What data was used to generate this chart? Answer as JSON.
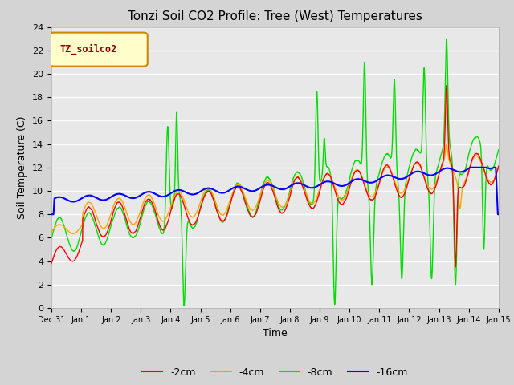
{
  "title": "Tonzi Soil CO2 Profile: Tree (West) Temperatures",
  "xlabel": "Time",
  "ylabel": "Soil Temperature (C)",
  "legend_label": "TZ_soilco2",
  "series_labels": [
    "-2cm",
    "-4cm",
    "-8cm",
    "-16cm"
  ],
  "series_colors": [
    "#ff0000",
    "#ffa500",
    "#00dd00",
    "#0000ff"
  ],
  "ylim": [
    0,
    24
  ],
  "fig_bg": "#d4d4d4",
  "plot_bg": "#e8e8e8",
  "xtick_labels": [
    "Dec 31",
    "Jan 1",
    "Jan 2",
    "Jan 3",
    "Jan 4",
    "Jan 5",
    "Jan 6",
    "Jan 7",
    "Jan 8",
    "Jan 9",
    "Jan 10",
    "Jan 11",
    "Jan 12",
    "Jan 13",
    "Jan 14",
    "Jan 15"
  ],
  "n_points": 3000
}
